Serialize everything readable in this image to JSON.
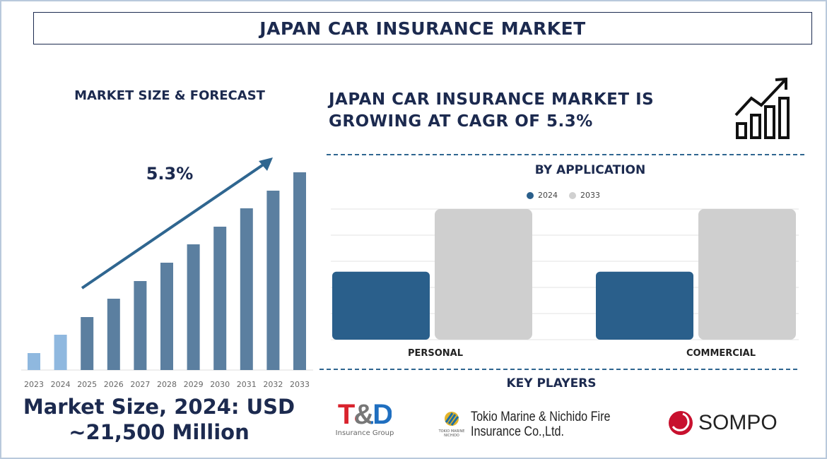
{
  "title": "JAPAN CAR INSURANCE MARKET",
  "left_panel": {
    "heading": "MARKET SIZE & FORECAST",
    "cagr_label": "5.3%",
    "market_size_line1": "Market Size, 2024: USD",
    "market_size_line2": "~21,500 Million"
  },
  "right_panel": {
    "headline_line1": "JAPAN CAR INSURANCE MARKET IS",
    "headline_line2": "GROWING AT CAGR OF 5.3%",
    "icon": "growth-chart-icon",
    "section_application": "BY APPLICATION",
    "section_players": "KEY PLAYERS"
  },
  "key_players": [
    {
      "name": "T&D",
      "sub": "Insurance Group"
    },
    {
      "name_line1": "Tokio Marine & Nichido Fire",
      "name_line2": "Insurance Co.,Ltd.",
      "logo_text": "TOKIO MARINE NICHIDO"
    },
    {
      "name": "SOMPO"
    }
  ],
  "chart_data": [
    {
      "type": "bar",
      "title": "MARKET SIZE & FORECAST",
      "categories": [
        "2023",
        "2024",
        "2025",
        "2026",
        "2027",
        "2028",
        "2029",
        "2030",
        "2031",
        "2032",
        "2033"
      ],
      "values": [
        24,
        50,
        75,
        101,
        126,
        152,
        178,
        203,
        229,
        254,
        280
      ],
      "colors": [
        "#8fb8df",
        "#8fb8df",
        "#5b7fa0",
        "#5b7fa0",
        "#5b7fa0",
        "#5b7fa0",
        "#5b7fa0",
        "#5b7fa0",
        "#5b7fa0",
        "#5b7fa0",
        "#5b7fa0"
      ],
      "annotation": "5.3%",
      "ylim": [
        0,
        280
      ],
      "grid": false
    },
    {
      "type": "bar",
      "title": "BY APPLICATION",
      "categories": [
        "PERSONAL",
        "COMMERCIAL"
      ],
      "series": [
        {
          "name": "2024",
          "values": [
            2.6,
            2.6
          ],
          "color": "#2a5f8b"
        },
        {
          "name": "2033",
          "values": [
            5,
            5
          ],
          "color": "#cfcfcf"
        }
      ],
      "ylim": [
        0,
        5
      ],
      "grid": true,
      "legend": "top"
    }
  ]
}
